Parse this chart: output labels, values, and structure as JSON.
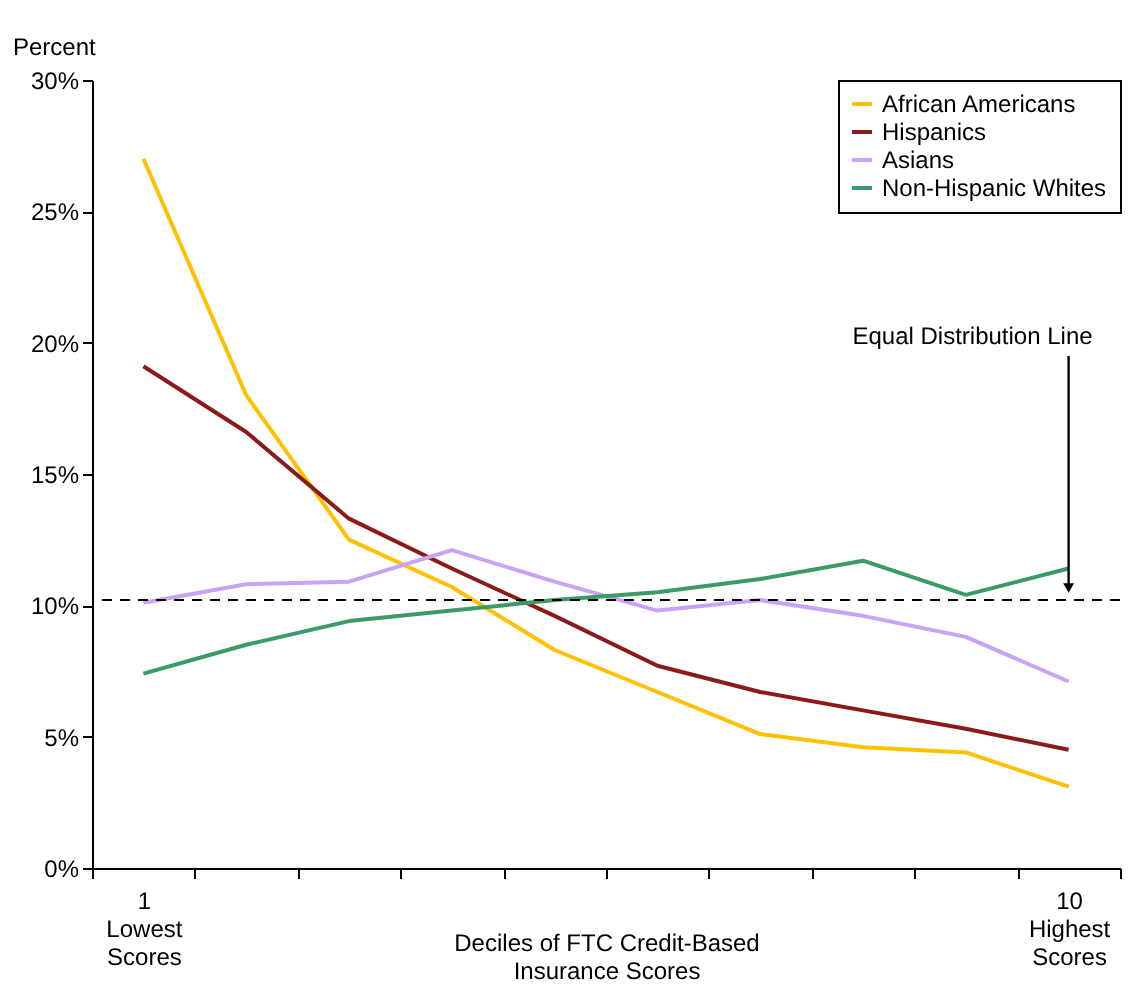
{
  "chart_data": {
    "type": "line",
    "ylabel": "Percent",
    "xlabel": "Deciles of FTC Credit-Based Insurance Scores",
    "categories": [
      "1 Lowest Scores",
      null,
      null,
      null,
      null,
      null,
      null,
      null,
      null,
      "10 Highest Scores"
    ],
    "series": [
      {
        "name": "African Americans",
        "color": "#ffc000",
        "values": [
          27.0,
          18.0,
          12.5,
          10.7,
          8.3,
          6.7,
          5.1,
          4.6,
          4.4,
          3.1
        ]
      },
      {
        "name": "Hispanics",
        "color": "#8b1a1a",
        "values": [
          19.1,
          16.6,
          13.3,
          11.4,
          9.6,
          7.7,
          6.7,
          6.0,
          5.3,
          4.5
        ]
      },
      {
        "name": "Asians",
        "color": "#c9a3f5",
        "values": [
          10.1,
          10.8,
          10.9,
          12.1,
          10.9,
          9.8,
          10.2,
          9.6,
          8.8,
          7.1
        ]
      },
      {
        "name": "Non-Hispanic Whites",
        "color": "#3a9a68",
        "values": [
          7.4,
          8.5,
          9.4,
          9.8,
          10.2,
          10.5,
          11.0,
          11.7,
          10.4,
          11.4
        ]
      }
    ],
    "ylim": [
      0,
      30
    ],
    "yticks": [
      {
        "value": 0,
        "label": "0%"
      },
      {
        "value": 5,
        "label": "5%"
      },
      {
        "value": 10,
        "label": "10%"
      },
      {
        "value": 15,
        "label": "15%"
      },
      {
        "value": 20,
        "label": "20%"
      },
      {
        "value": 25,
        "label": "25%"
      },
      {
        "value": 30,
        "label": "30%"
      }
    ],
    "ref_lines": [
      {
        "axis": "y",
        "value": 10.2,
        "label": "Equal Distribution Line",
        "color": "#000000",
        "line_style": "dashed"
      }
    ],
    "grid": false,
    "legend": "top right",
    "marker": "none",
    "line_style": "solid"
  }
}
